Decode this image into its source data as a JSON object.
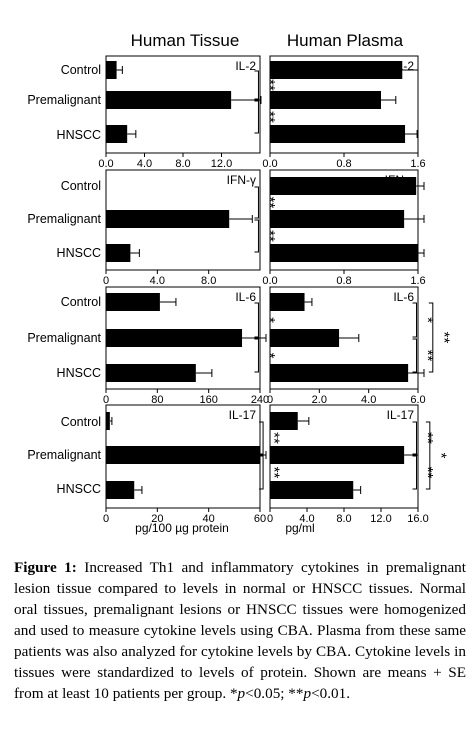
{
  "figure": {
    "col_titles": [
      "Human Tissue",
      "Human Plasma"
    ],
    "categories": [
      "Control",
      "Premalignant",
      "HNSCC"
    ],
    "xlabel_tissue": "pg/100 µg protein",
    "xlabel_plasma": "pg/ml"
  },
  "caption": {
    "label": "Figure 1:",
    "text": "Increased Th1 and inflammatory cytokines in premalignant lesion tissue compared to levels in normal or HNSCC tissues. Normal oral tissues, premalignant lesions or HNSCC tissues were homogenized and used to measure cytokine levels using CBA. Plasma from these same patients was also analyzed for cytokine levels by CBA. Cytokine levels in tissues were standardized to levels of protein. Shown are means + SE from at least 10 patients per group.",
    "p1": "p",
    "sig1": "<0.05; **",
    "p2": "p",
    "sig2": "<0.01.",
    "star": "*"
  },
  "chart_data": [
    {
      "type": "bar",
      "orientation": "horizontal",
      "panel": "IL-2 tissue",
      "label": "IL-2",
      "categories": [
        "Control",
        "Premalignant",
        "HNSCC"
      ],
      "values": [
        1.1,
        13.0,
        2.2
      ],
      "errors": [
        0.6,
        3.1,
        0.9
      ],
      "xlim": [
        0,
        16
      ],
      "ticks": [
        "0.0",
        "4.0",
        "8.0",
        "12.0"
      ],
      "tick_values": [
        0,
        4,
        8,
        12
      ],
      "sig": [
        {
          "from": 0,
          "to": 1,
          "label": "**",
          "x": 0.99
        },
        {
          "from": 1,
          "to": 2,
          "label": "**",
          "x": 0.99
        }
      ]
    },
    {
      "type": "bar",
      "orientation": "horizontal",
      "panel": "IL-2 plasma",
      "label": "IL-2",
      "categories": [
        "Control",
        "Premalignant",
        "HNSCC"
      ],
      "values": [
        1.43,
        1.2,
        1.46
      ],
      "errors": [
        0.17,
        0.16,
        0.13
      ],
      "xlim": [
        0,
        1.6
      ],
      "ticks": [
        "0.0",
        "0.8",
        "1.6"
      ],
      "tick_values": [
        0,
        0.8,
        1.6
      ],
      "sig": []
    },
    {
      "type": "bar",
      "orientation": "horizontal",
      "panel": "IFN-gamma tissue",
      "label": "IFN-γ",
      "categories": [
        "Control",
        "Premalignant",
        "HNSCC"
      ],
      "values": [
        0,
        9.6,
        1.9
      ],
      "errors": [
        0,
        1.8,
        0.7
      ],
      "xlim": [
        0,
        12
      ],
      "ticks": [
        "0",
        "4.0",
        "8.0"
      ],
      "tick_values": [
        0,
        4,
        8
      ],
      "sig": [
        {
          "from": 0,
          "to": 1,
          "label": "**",
          "x": 0.99
        },
        {
          "from": 1,
          "to": 2,
          "label": "**",
          "x": 0.99
        }
      ]
    },
    {
      "type": "bar",
      "orientation": "horizontal",
      "panel": "IFN-gamma plasma",
      "label": "IFN-γ",
      "categories": [
        "Control",
        "Premalignant",
        "HNSCC"
      ],
      "values": [
        1.58,
        1.45,
        1.6
      ],
      "errors": [
        0.2,
        0.23,
        0.15
      ],
      "xlim": [
        0,
        1.6
      ],
      "ticks": [
        "0.0",
        "0.8",
        "1.6"
      ],
      "tick_values": [
        0,
        0.8,
        1.6
      ],
      "sig": []
    },
    {
      "type": "bar",
      "orientation": "horizontal",
      "panel": "IL-6 tissue",
      "label": "IL-6",
      "categories": [
        "Control",
        "Premalignant",
        "HNSCC"
      ],
      "values": [
        84,
        212,
        140
      ],
      "errors": [
        25,
        45,
        25
      ],
      "xlim": [
        0,
        240
      ],
      "ticks": [
        "0",
        "80",
        "160",
        "240"
      ],
      "tick_values": [
        0,
        80,
        160,
        240
      ],
      "sig": [
        {
          "from": 0,
          "to": 1,
          "label": "*",
          "x": 0.99
        },
        {
          "from": 1,
          "to": 2,
          "label": "*",
          "x": 0.99
        }
      ]
    },
    {
      "type": "bar",
      "orientation": "horizontal",
      "panel": "IL-6 plasma",
      "label": "IL-6",
      "categories": [
        "Control",
        "Premalignant",
        "HNSCC"
      ],
      "values": [
        1.4,
        2.8,
        5.6
      ],
      "errors": [
        0.3,
        0.8,
        0.9
      ],
      "xlim": [
        0,
        6.0
      ],
      "ticks": [
        "0",
        "2.0",
        "4.0",
        "6.0"
      ],
      "tick_values": [
        0,
        2,
        4,
        6
      ],
      "sig": [
        {
          "from": 0,
          "to": 1,
          "label": "*",
          "x": 0.99
        },
        {
          "from": 1,
          "to": 2,
          "label": "**",
          "x": 0.99
        },
        {
          "from": 0,
          "to": 2,
          "label": "**",
          "x": 1.1
        }
      ]
    },
    {
      "type": "bar",
      "orientation": "horizontal",
      "panel": "IL-17 tissue",
      "label": "IL-17",
      "categories": [
        "Control",
        "Premalignant",
        "HNSCC"
      ],
      "values": [
        1.5,
        60,
        11
      ],
      "errors": [
        0.8,
        5,
        3
      ],
      "xlim": [
        0,
        60
      ],
      "ticks": [
        "0",
        "20",
        "40",
        "60"
      ],
      "tick_values": [
        0,
        20,
        40,
        60
      ],
      "sig": [
        {
          "from": 0,
          "to": 1,
          "label": "**",
          "x": 1.02
        },
        {
          "from": 1,
          "to": 2,
          "label": "**",
          "x": 1.02
        }
      ]
    },
    {
      "type": "bar",
      "orientation": "horizontal",
      "panel": "IL-17 plasma",
      "label": "IL-17",
      "categories": [
        "Control",
        "Premalignant",
        "HNSCC"
      ],
      "values": [
        3.0,
        14.5,
        9.0
      ],
      "errors": [
        1.2,
        1.5,
        0.8
      ],
      "xlim": [
        0,
        16
      ],
      "ticks": [
        "0",
        "4.0",
        "8.0",
        "12.0",
        "16.0"
      ],
      "tick_values": [
        0,
        4,
        8,
        12,
        16
      ],
      "sig": [
        {
          "from": 0,
          "to": 1,
          "label": "**",
          "x": 0.99
        },
        {
          "from": 1,
          "to": 2,
          "label": "**",
          "x": 0.99
        },
        {
          "from": 0,
          "to": 2,
          "label": "*",
          "x": 1.08
        }
      ]
    }
  ]
}
